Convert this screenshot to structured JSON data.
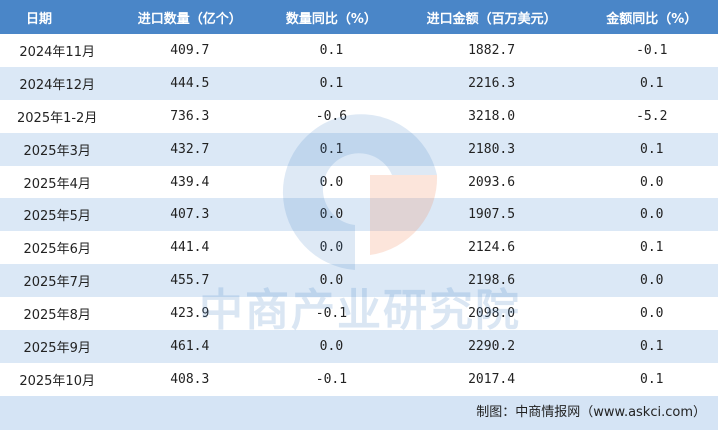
{
  "table": {
    "header": [
      "日期",
      "进口数量（亿个）",
      "数量同比（%）",
      "进口金额（百万美元）",
      "金额同比（%）"
    ],
    "rows": [
      [
        "2024年11月",
        "409.7",
        "0.1",
        "1882.7",
        "-0.1"
      ],
      [
        "2024年12月",
        "444.5",
        "0.1",
        "2216.3",
        "0.1"
      ],
      [
        "2025年1-2月",
        "736.3",
        "-0.6",
        "3218.0",
        "-5.2"
      ],
      [
        "2025年3月",
        "432.7",
        "0.1",
        "2180.3",
        "0.1"
      ],
      [
        "2025年4月",
        "439.4",
        "0.0",
        "2093.6",
        "0.0"
      ],
      [
        "2025年5月",
        "407.3",
        "0.0",
        "1907.5",
        "0.0"
      ],
      [
        "2025年6月",
        "441.4",
        "0.0",
        "2124.6",
        "0.1"
      ],
      [
        "2025年7月",
        "455.7",
        "0.0",
        "2198.6",
        "0.0"
      ],
      [
        "2025年8月",
        "423.9",
        "-0.1",
        "2098.0",
        "0.0"
      ],
      [
        "2025年9月",
        "461.4",
        "0.0",
        "2290.2",
        "0.1"
      ],
      [
        "2025年10月",
        "408.3",
        "-0.1",
        "2017.4",
        "0.1"
      ]
    ],
    "footer": "制图：中商情报网（www.askci.com）",
    "watermark": "中商产业研究院"
  }
}
